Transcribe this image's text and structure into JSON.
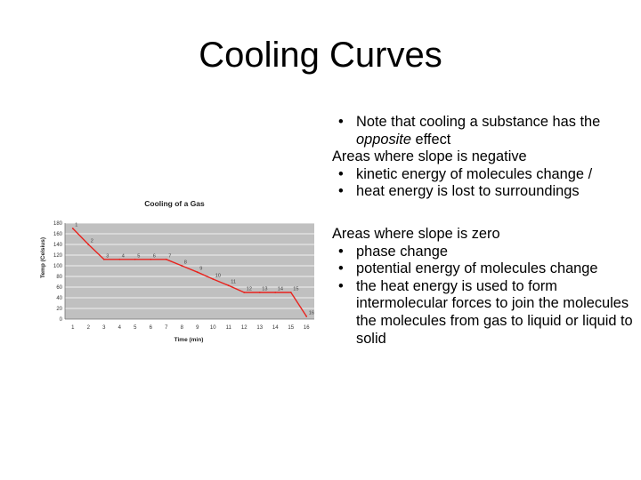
{
  "slide": {
    "title": "Cooling Curves"
  },
  "notes": {
    "bullet_char": "•",
    "line1_prefix": "Note that cooling a substance has the ",
    "line1_emph": "opposite",
    "line1_suffix": " effect",
    "heading_negative": "Areas where slope is negative",
    "negative_items": [
      "kinetic energy of molecules change /",
      "heat energy is lost to surroundings"
    ],
    "heading_zero": "Areas where slope is zero",
    "zero_items": [
      "phase change",
      "potential energy of molecules change",
      "the heat energy is used to form intermolecular forces to join the molecules the molecules from gas to liquid or liquid to solid"
    ]
  },
  "colors": {
    "plot_bg": "#c0c0c0",
    "grid": "#ffffff",
    "line": "#e8231e",
    "text": "#000000"
  },
  "chart_data": {
    "type": "line",
    "title": "Cooling of a Gas",
    "xlabel": "Time (min)",
    "ylabel": "Temp (Celsius)",
    "x": [
      1,
      2,
      3,
      4,
      5,
      6,
      7,
      8,
      9,
      10,
      11,
      12,
      13,
      14,
      15,
      16
    ],
    "y": [
      170,
      140,
      112,
      112,
      112,
      112,
      112,
      100,
      88,
      75,
      63,
      50,
      50,
      50,
      50,
      5
    ],
    "point_labels": [
      "1",
      "2",
      "3",
      "4",
      "5",
      "6",
      "7",
      "8",
      "9",
      "10",
      "11",
      "12",
      "13",
      "14",
      "15",
      "16"
    ],
    "x_ticks": [
      "1",
      "2",
      "3",
      "4",
      "5",
      "6",
      "7",
      "8",
      "9",
      "10",
      "11",
      "12",
      "13",
      "14",
      "15",
      "16"
    ],
    "y_ticks": [
      "0",
      "20",
      "40",
      "60",
      "80",
      "100",
      "120",
      "140",
      "160",
      "180"
    ],
    "xlim": [
      0.5,
      16.5
    ],
    "ylim": [
      0,
      180
    ],
    "grid": true,
    "legend": "none"
  }
}
